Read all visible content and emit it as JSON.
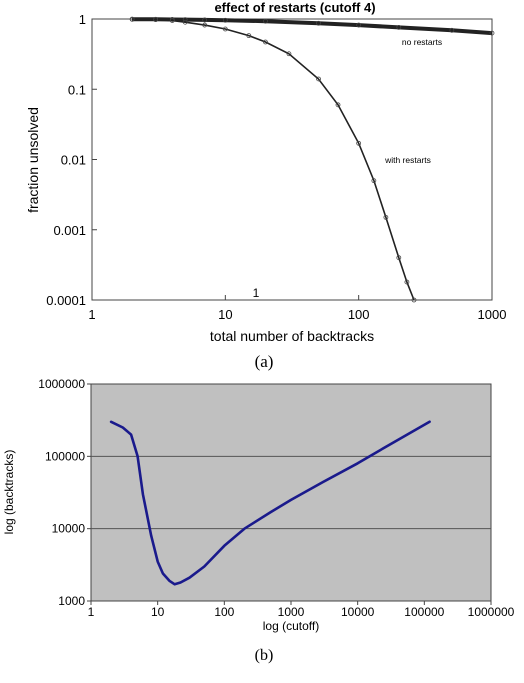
{
  "chart_data": [
    {
      "type": "scatter",
      "title": "effect of restarts (cutoff 4)",
      "xlabel": "total number of backtracks",
      "ylabel": "fraction unsolved",
      "x_scale": "log",
      "y_scale": "log",
      "xlim": [
        1,
        1000
      ],
      "ylim": [
        0.0001,
        1
      ],
      "x_ticks": [
        "1",
        "10",
        "100",
        "1000"
      ],
      "y_ticks": [
        "1",
        "0.1",
        "0.01",
        "0.001",
        "0.0001"
      ],
      "grid": false,
      "annotations": [
        "no restarts",
        "with restarts",
        "1"
      ],
      "series": [
        {
          "name": "no restarts",
          "x": [
            2,
            3,
            4,
            5,
            7,
            10,
            20,
            50,
            100,
            200,
            500,
            1000
          ],
          "y": [
            0.995,
            0.99,
            0.985,
            0.98,
            0.97,
            0.96,
            0.93,
            0.87,
            0.82,
            0.76,
            0.69,
            0.63
          ]
        },
        {
          "name": "with restarts",
          "x": [
            2,
            3,
            4,
            5,
            7,
            10,
            15,
            20,
            30,
            50,
            70,
            100,
            130,
            160,
            200,
            230,
            260
          ],
          "y": [
            0.99,
            0.98,
            0.95,
            0.9,
            0.82,
            0.72,
            0.58,
            0.47,
            0.32,
            0.14,
            0.06,
            0.017,
            0.005,
            0.0015,
            0.0004,
            0.00018,
            0.0001
          ]
        }
      ],
      "caption": "(a)"
    },
    {
      "type": "line",
      "xlabel": "log (cutoff)",
      "ylabel": "log (backtracks)",
      "x_scale": "log",
      "y_scale": "log",
      "xlim": [
        1,
        1000000
      ],
      "ylim": [
        1000,
        1000000
      ],
      "x_ticks": [
        "1",
        "10",
        "100",
        "1000",
        "10000",
        "100000",
        "1000000"
      ],
      "y_ticks": [
        "1000000",
        "100000",
        "10000",
        "1000"
      ],
      "grid": true,
      "background": "#c0c0c0",
      "line_color": "#1a1a8c",
      "series": [
        {
          "x": [
            2,
            3,
            4,
            5,
            6,
            8,
            10,
            12,
            15,
            18,
            22,
            30,
            50,
            100,
            200,
            500,
            1000,
            3000,
            10000,
            30000,
            120000
          ],
          "y": [
            300000,
            250000,
            200000,
            100000,
            30000,
            8000,
            3500,
            2400,
            1900,
            1700,
            1800,
            2100,
            3000,
            5800,
            10000,
            17000,
            25000,
            44000,
            80000,
            145000,
            300000
          ]
        }
      ],
      "caption": "(b)"
    }
  ]
}
